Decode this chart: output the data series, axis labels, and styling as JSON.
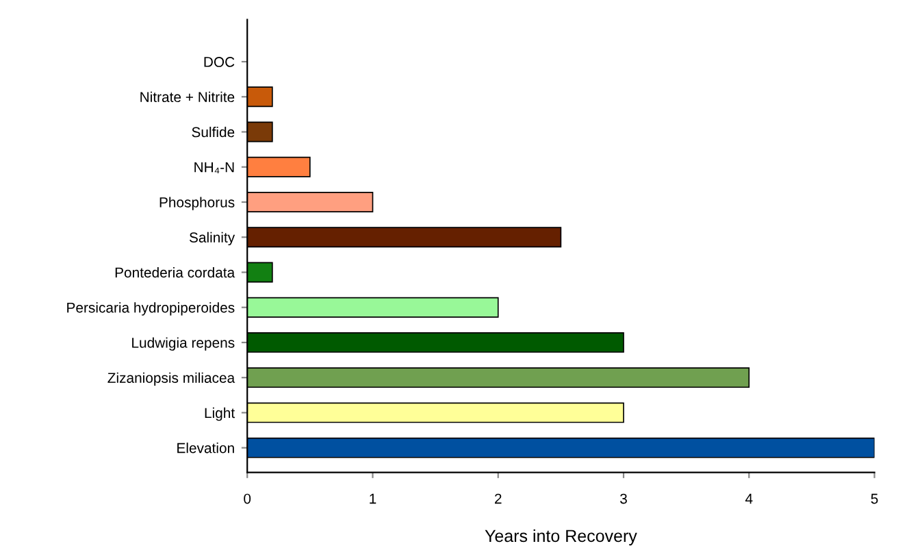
{
  "chart_data": {
    "type": "bar",
    "orientation": "horizontal",
    "xlabel": "Years into Recovery",
    "categories": [
      "DOC",
      "Nitrate + Nitrite",
      "Sulfide",
      "NH₄-N",
      "Phosphorus",
      "Salinity",
      "Pontederia cordata",
      "Persicaria hydropiperoides",
      "Ludwigia repens",
      "Zizaniopsis miliacea",
      "Light",
      "Elevation"
    ],
    "values": [
      null,
      0.2,
      0.2,
      0.5,
      1,
      2.5,
      0.2,
      2,
      3,
      4,
      3,
      5
    ],
    "colors": [
      null,
      "#c85a0a",
      "#7a3a08",
      "#ff7f40",
      "#ff9f80",
      "#652000",
      "#128012",
      "#98f898",
      "#005a00",
      "#70a050",
      "#ffff98",
      "#0050a0"
    ],
    "xlim": [
      0,
      5
    ],
    "xticks": [
      0,
      1,
      2,
      3,
      4,
      5
    ],
    "grid": false,
    "legend": false
  }
}
